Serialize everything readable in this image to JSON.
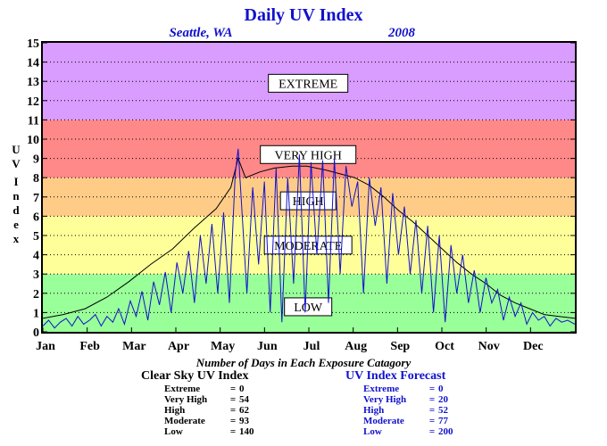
{
  "chart_data": {
    "type": "line",
    "title": "Daily UV Index",
    "location": "Seattle, WA",
    "year": "2008",
    "ylabel": "UV Index",
    "ylim": [
      0,
      15
    ],
    "yticks": [
      "0",
      "1",
      "2",
      "3",
      "4",
      "5",
      "6",
      "7",
      "8",
      "9",
      "10",
      "11",
      "12",
      "13",
      "14",
      "15"
    ],
    "months": [
      "Jan",
      "Feb",
      "Mar",
      "Apr",
      "May",
      "Jun",
      "Jul",
      "Aug",
      "Sep",
      "Oct",
      "Nov",
      "Dec"
    ],
    "bands": [
      {
        "label": "LOW",
        "from": 0,
        "to": 3,
        "color": "#99ff99",
        "label_y": 1.3
      },
      {
        "label": "MODERATE",
        "from": 3,
        "to": 6,
        "color": "#ffff99",
        "label_y": 4.5
      },
      {
        "label": "HIGH",
        "from": 6,
        "to": 8,
        "color": "#ffcc88",
        "label_y": 6.8
      },
      {
        "label": "VERY HIGH",
        "from": 8,
        "to": 11,
        "color": "#ff8888",
        "label_y": 9.2
      },
      {
        "label": "EXTREME",
        "from": 11,
        "to": 15,
        "color": "#d99cff",
        "label_y": 12.9
      }
    ],
    "series": [
      {
        "key": "clear",
        "color": "#000000",
        "x": [
          1,
          15,
          30,
          45,
          60,
          75,
          90,
          105,
          120,
          130,
          135,
          140,
          150,
          160,
          172,
          182,
          195,
          205,
          215,
          225,
          235,
          245,
          255,
          265,
          275,
          285,
          295,
          305,
          315,
          325,
          335,
          345,
          355,
          366
        ],
        "values": [
          0.7,
          0.9,
          1.2,
          1.8,
          2.6,
          3.5,
          4.3,
          5.4,
          6.4,
          7.5,
          9.0,
          8.0,
          8.3,
          8.5,
          8.6,
          8.6,
          8.4,
          8.2,
          8.0,
          7.6,
          7.0,
          6.3,
          5.7,
          5.0,
          4.3,
          3.6,
          3.0,
          2.5,
          1.9,
          1.5,
          1.2,
          0.9,
          0.8,
          0.7
        ]
      },
      {
        "key": "forecast",
        "color": "#1111cc",
        "x": [
          1,
          5,
          9,
          13,
          17,
          21,
          25,
          29,
          33,
          37,
          41,
          45,
          49,
          53,
          57,
          61,
          65,
          69,
          73,
          77,
          81,
          85,
          89,
          93,
          97,
          101,
          105,
          109,
          113,
          117,
          121,
          125,
          129,
          133,
          135,
          137,
          141,
          145,
          149,
          153,
          157,
          161,
          165,
          169,
          173,
          177,
          181,
          185,
          189,
          193,
          197,
          201,
          205,
          209,
          213,
          217,
          221,
          225,
          229,
          233,
          237,
          241,
          245,
          249,
          253,
          257,
          261,
          265,
          269,
          273,
          277,
          281,
          285,
          289,
          293,
          297,
          301,
          305,
          309,
          313,
          317,
          321,
          325,
          329,
          333,
          337,
          341,
          345,
          349,
          353,
          357,
          361,
          366
        ],
        "values": [
          0.3,
          0.6,
          0.2,
          0.5,
          0.7,
          0.3,
          0.8,
          0.4,
          0.6,
          0.9,
          0.3,
          0.8,
          0.5,
          1.2,
          0.4,
          1.6,
          0.8,
          2.1,
          0.6,
          2.6,
          1.4,
          3.1,
          1.0,
          3.6,
          2.0,
          4.2,
          1.5,
          5.0,
          2.5,
          5.6,
          2.0,
          6.2,
          1.5,
          8.2,
          9.5,
          7.0,
          2.0,
          7.5,
          3.5,
          7.8,
          1.0,
          8.5,
          0.5,
          8.0,
          2.5,
          9.2,
          1.0,
          8.8,
          4.0,
          8.9,
          1.5,
          9.0,
          3.0,
          8.6,
          6.5,
          7.8,
          2.0,
          8.0,
          5.5,
          7.5,
          2.5,
          7.2,
          4.0,
          6.5,
          3.0,
          5.8,
          2.0,
          5.5,
          1.0,
          5.0,
          0.5,
          4.5,
          2.0,
          4.0,
          1.5,
          3.2,
          1.0,
          2.8,
          1.5,
          2.2,
          0.6,
          1.8,
          0.8,
          1.5,
          0.4,
          1.0,
          0.6,
          0.8,
          0.3,
          0.7,
          0.5,
          0.6,
          0.4
        ]
      }
    ],
    "caption": "Number of Days in Each Exposure Catagory",
    "stats": {
      "clear": {
        "title": "Clear Sky UV Index",
        "rows": [
          {
            "name": "Extreme",
            "value": "0"
          },
          {
            "name": "Very High",
            "value": "54"
          },
          {
            "name": "High",
            "value": "62"
          },
          {
            "name": "Moderate",
            "value": "93"
          },
          {
            "name": "Low",
            "value": "140"
          }
        ]
      },
      "forecast": {
        "title": "UV Index Forecast",
        "rows": [
          {
            "name": "Extreme",
            "value": "0"
          },
          {
            "name": "Very High",
            "value": "20"
          },
          {
            "name": "High",
            "value": "52"
          },
          {
            "name": "Moderate",
            "value": "77"
          },
          {
            "name": "Low",
            "value": "200"
          }
        ]
      }
    }
  }
}
